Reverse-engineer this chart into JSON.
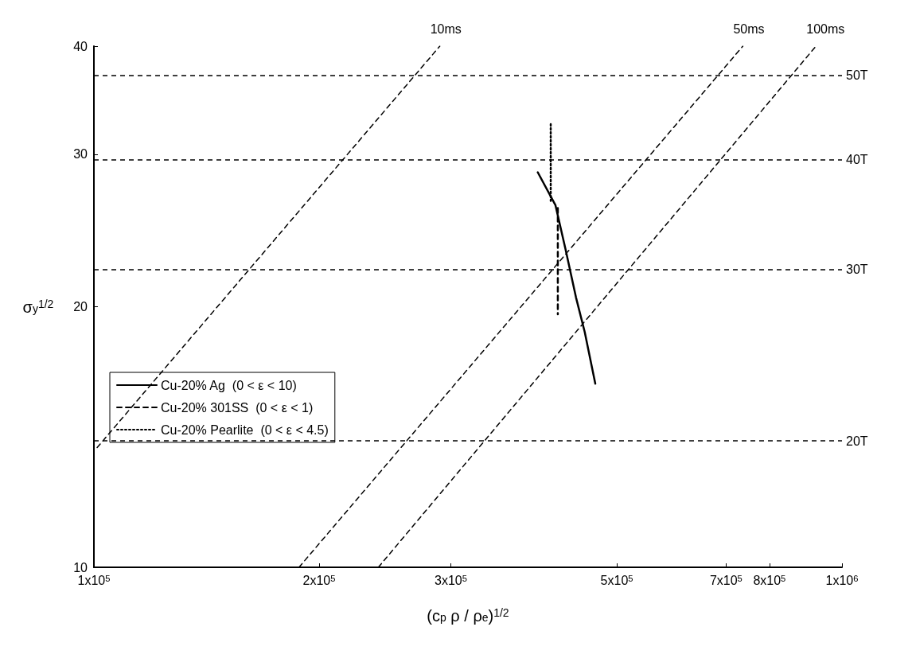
{
  "chart_data": {
    "type": "line",
    "xlabel": "(c$_{p}$ ρ / ρ$_{e}$)$^{1/2}$",
    "ylabel": "σ$_{y}$$^{1/2}$",
    "log": "xy",
    "xlim": [
      100000,
      1000000
    ],
    "xticks": [
      {
        "value": 100000,
        "label": "1x10$^{5}$"
      },
      {
        "value": 200000,
        "label": "2x10$^{5}$"
      },
      {
        "value": 300000,
        "label": "3x10$^{5}$"
      },
      {
        "value": 500000,
        "label": "5x10$^{5}$"
      },
      {
        "value": 700000,
        "label": "7x10$^{5}$"
      },
      {
        "value": 800000,
        "label": "8x10$^{5}$"
      },
      {
        "value": 1000000,
        "label": "1x10$^{6}$"
      }
    ],
    "ylim": [
      10,
      40
    ],
    "yticks": [
      10,
      20,
      30,
      40
    ],
    "grid": false,
    "legend": "left",
    "marker": "none",
    "series": [
      {
        "name": "Cu-20% Ag  (0 < ε < 10)",
        "color": "#000000",
        "line_style": "solid",
        "x": [
          392000,
          414000,
          427000,
          441000,
          453000,
          468000
        ],
        "values": [
          28.6,
          26.2,
          23.3,
          20.5,
          18.7,
          16.3
        ]
      },
      {
        "name": "Cu-20% 301SS  (0 < ε < 1)",
        "color": "#000000",
        "line_style": "dashed",
        "x": [
          417000,
          417000
        ],
        "values": [
          26.0,
          19.6
        ]
      },
      {
        "name": "Cu-20% Pearlite  (0 < ε < 4.5)",
        "color": "#000000",
        "line_style": "dotted",
        "x": [
          408000,
          408000
        ],
        "values": [
          32.5,
          26.5
        ]
      },
      {
        "name": "10ms",
        "color": "#000000",
        "line_style": "dashed",
        "x": [
          101000,
          290000
        ],
        "values": [
          13.75,
          40
        ]
      },
      {
        "name": "50ms",
        "color": "#000000",
        "line_style": "dashed",
        "x": [
          188000,
          737000
        ],
        "values": [
          10,
          40
        ]
      },
      {
        "name": "100ms",
        "color": "#000000",
        "line_style": "dashed",
        "x": [
          240000,
          923000
        ],
        "values": [
          10,
          40
        ]
      }
    ],
    "ref_lines": [
      {
        "axis": "y",
        "value": 37.0,
        "label": "50T",
        "color": "#000000",
        "line_style": "dashed"
      },
      {
        "axis": "y",
        "value": 29.6,
        "label": "40T",
        "color": "#000000",
        "line_style": "dashed"
      },
      {
        "axis": "y",
        "value": 22.1,
        "label": "30T",
        "color": "#000000",
        "line_style": "dashed"
      },
      {
        "axis": "y",
        "value": 14.0,
        "label": "20T",
        "color": "#000000",
        "line_style": "dashed"
      }
    ]
  }
}
